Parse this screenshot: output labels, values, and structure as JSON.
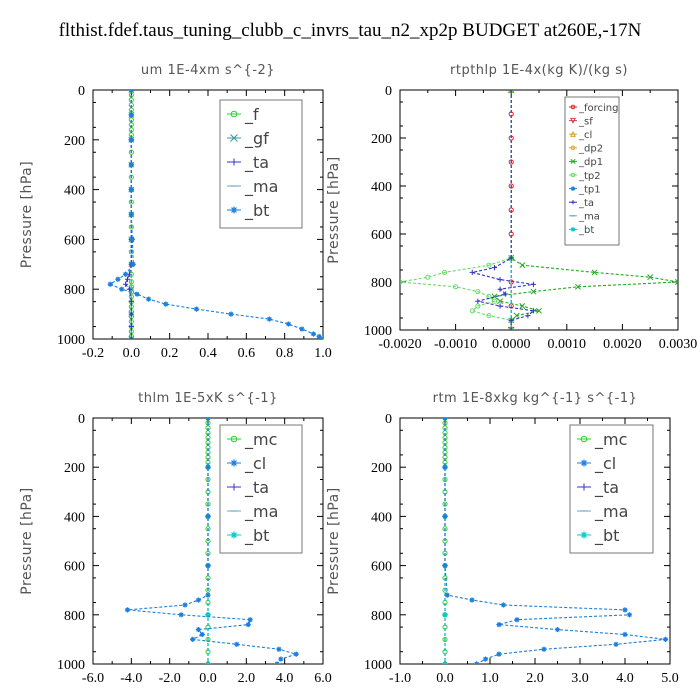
{
  "title": "flthist.fdef.taus_tuning_clubb_c_invrs_tau_n2_xp2p  BUDGET at260E,-17N",
  "chart_data": [
    {
      "type": "line",
      "title": "um   1E-4xm s^{-2}",
      "ylabel": "Pressure [hPa]",
      "xlim": [
        -0.2,
        1.0
      ],
      "ylim": [
        1000,
        0
      ],
      "xticks": [
        "-0.2",
        "0.0",
        "0.2",
        "0.4",
        "0.6",
        "0.8",
        "1.0"
      ],
      "yticks": [
        "0",
        "200",
        "400",
        "600",
        "800",
        "1000"
      ],
      "grid": false,
      "legend_placement": "top-right",
      "series": [
        {
          "name": "_f",
          "color": "#33cc33",
          "marker": "o",
          "y": [
            0,
            20,
            40,
            60,
            80,
            100,
            120,
            140,
            160,
            180,
            200,
            250,
            300,
            350,
            400,
            450,
            500,
            550,
            600,
            650,
            700,
            740,
            770,
            790,
            810,
            830,
            850,
            870,
            890,
            910,
            930,
            950,
            970,
            990,
            1000
          ],
          "x": [
            0,
            0,
            0,
            0,
            0,
            0,
            0,
            0,
            0,
            0,
            0,
            0,
            0,
            0,
            0,
            0,
            0,
            0,
            0,
            0,
            0,
            0,
            0,
            0,
            0,
            0,
            0,
            0,
            0,
            0,
            0,
            0,
            0,
            0,
            0
          ]
        },
        {
          "name": "_gf",
          "color": "#339999",
          "marker": "x",
          "y": [
            0,
            100,
            200,
            300,
            400,
            500,
            600,
            700,
            800,
            900,
            1000
          ],
          "x": [
            0,
            0,
            0,
            0,
            0,
            0,
            0,
            0,
            0,
            0,
            0
          ]
        },
        {
          "name": "_ta",
          "color": "#3333cc",
          "marker": "+",
          "y": [
            0,
            200,
            400,
            600,
            700,
            740,
            760,
            780,
            800,
            850,
            900,
            950,
            1000
          ],
          "x": [
            0,
            0,
            0,
            0,
            0,
            -0.01,
            -0.02,
            -0.03,
            -0.01,
            0,
            0,
            0,
            0
          ]
        },
        {
          "name": "_ma",
          "color": "#66aacc",
          "marker": "-",
          "y": [
            0,
            200,
            400,
            600,
            800,
            1000
          ],
          "x": [
            0,
            0,
            0,
            0,
            0,
            0
          ]
        },
        {
          "name": "_bt",
          "color": "#1a7fe0",
          "marker": "*",
          "y": [
            0,
            100,
            200,
            300,
            400,
            500,
            600,
            700,
            740,
            760,
            780,
            800,
            820,
            840,
            860,
            880,
            900,
            920,
            940,
            960,
            980,
            990,
            1000
          ],
          "x": [
            0,
            0,
            0,
            0,
            0,
            0,
            0.005,
            0.01,
            -0.03,
            -0.07,
            -0.11,
            -0.05,
            0.03,
            0.09,
            0.18,
            0.34,
            0.52,
            0.72,
            0.82,
            0.89,
            0.95,
            0.98,
            1.0
          ]
        }
      ]
    },
    {
      "type": "line",
      "title": "rtpthlp   1E-4x(kg K)/(kg s)",
      "ylabel": "Pressure [hPa]",
      "xlim": [
        -0.002,
        0.003
      ],
      "ylim": [
        1000,
        0
      ],
      "xticks": [
        "-0.0020",
        "-0.0010",
        "0.0000",
        "0.0010",
        "0.0020",
        "0.0030"
      ],
      "yticks": [
        "0",
        "200",
        "400",
        "600",
        "800",
        "1000"
      ],
      "grid": false,
      "legend_placement": "top-right",
      "series": [
        {
          "name": "_forcing",
          "color": "#e02020",
          "marker": "o",
          "y": [
            0,
            100,
            200,
            300,
            400,
            500,
            600,
            700,
            800,
            900,
            1000
          ],
          "x": [
            0,
            0,
            0,
            0,
            0,
            0,
            0,
            0,
            0,
            0,
            0
          ]
        },
        {
          "name": "_sf",
          "color": "#e04040",
          "marker": "v",
          "y": [
            0,
            1000
          ],
          "x": [
            0,
            0
          ]
        },
        {
          "name": "_cl",
          "color": "#e0a020",
          "marker": "^",
          "y": [
            0,
            1000
          ],
          "x": [
            0,
            0
          ]
        },
        {
          "name": "_dp2",
          "color": "#e0a020",
          "marker": "o",
          "y": [
            0,
            1000
          ],
          "x": [
            0,
            0
          ]
        },
        {
          "name": "_dp1",
          "color": "#22aa22",
          "marker": "x",
          "y": [
            0,
            700,
            730,
            760,
            780,
            800,
            820,
            840,
            860,
            880,
            900,
            920,
            940,
            960,
            1000
          ],
          "x": [
            0,
            0,
            0.0002,
            0.0015,
            0.0025,
            0.003,
            0.0012,
            0.0004,
            -0.0003,
            -0.0002,
            0.0002,
            0.0005,
            0.0001,
            0,
            0
          ]
        },
        {
          "name": "_tp2",
          "color": "#66dd66",
          "marker": "o",
          "y": [
            0,
            700,
            730,
            760,
            780,
            800,
            820,
            840,
            860,
            880,
            900,
            920,
            940,
            960,
            1000
          ],
          "x": [
            0,
            0,
            -0.0004,
            -0.0012,
            -0.0015,
            -0.002,
            -0.001,
            -0.0006,
            -0.0004,
            -0.0003,
            -0.0006,
            -0.0007,
            -0.0004,
            0,
            0
          ]
        },
        {
          "name": "_tp1",
          "color": "#1a7fe0",
          "marker": "*",
          "y": [
            0,
            1000
          ],
          "x": [
            0,
            0
          ]
        },
        {
          "name": "_ta",
          "color": "#3333cc",
          "marker": "+",
          "y": [
            0,
            700,
            740,
            760,
            790,
            810,
            830,
            850,
            880,
            900,
            920,
            940,
            960,
            1000
          ],
          "x": [
            0,
            0,
            -0.0003,
            -0.0007,
            -0.0002,
            0.0004,
            -0.0002,
            -0.0001,
            -0.0006,
            -0.0002,
            0.0004,
            0.0003,
            0,
            0
          ]
        },
        {
          "name": "_ma",
          "color": "#66aacc",
          "marker": "-",
          "y": [
            0,
            1000
          ],
          "x": [
            0,
            0
          ]
        },
        {
          "name": "_bt",
          "color": "#00cccc",
          "marker": "*",
          "y": [
            0,
            1000
          ],
          "x": [
            0,
            0
          ]
        }
      ]
    },
    {
      "type": "line",
      "title": "thlm   1E-5xK s^{-1}",
      "ylabel": "Pressure [hPa]",
      "xlim": [
        -6.0,
        6.0
      ],
      "ylim": [
        1000,
        0
      ],
      "xticks": [
        "-6.0",
        "-4.0",
        "-2.0",
        "0.0",
        "2.0",
        "4.0",
        "6.0"
      ],
      "yticks": [
        "0",
        "200",
        "400",
        "600",
        "800",
        "1000"
      ],
      "grid": false,
      "legend_placement": "top-right",
      "series": [
        {
          "name": "_mc",
          "color": "#33cc33",
          "marker": "o",
          "y": [
            0,
            20,
            40,
            60,
            80,
            100,
            120,
            140,
            160,
            180,
            200,
            250,
            300,
            350,
            400,
            450,
            500,
            550,
            600,
            650,
            700,
            750,
            800,
            850,
            900,
            950,
            1000
          ],
          "x": [
            0,
            0,
            0,
            0,
            0,
            0,
            0,
            0,
            0,
            0,
            0,
            0,
            0,
            0,
            0,
            0,
            0,
            0,
            0,
            0,
            0,
            0,
            0,
            0,
            0,
            0,
            0
          ]
        },
        {
          "name": "_cl",
          "color": "#1a7fe0",
          "marker": "*",
          "y": [
            0,
            200,
            400,
            600,
            720,
            740,
            760,
            780,
            800,
            820,
            840,
            860,
            880,
            900,
            920,
            940,
            960,
            980,
            1000
          ],
          "x": [
            0,
            0,
            0,
            0,
            0,
            -0.5,
            -1.2,
            -4.2,
            -1.4,
            2.2,
            2.1,
            -0.5,
            -0.3,
            -0.8,
            1.5,
            3.7,
            4.6,
            3.8,
            3.6
          ]
        },
        {
          "name": "_ta",
          "color": "#3333cc",
          "marker": "+",
          "y": [
            0,
            200,
            400,
            600,
            800,
            1000
          ],
          "x": [
            0,
            0,
            0,
            0,
            0,
            0
          ]
        },
        {
          "name": "_ma",
          "color": "#66aacc",
          "marker": "-",
          "y": [
            0,
            200,
            400,
            600,
            800,
            1000
          ],
          "x": [
            0,
            0,
            0,
            0,
            0,
            0
          ]
        },
        {
          "name": "_bt",
          "color": "#00cccc",
          "marker": "*",
          "y": [
            0,
            200,
            400,
            600,
            800,
            1000
          ],
          "x": [
            0,
            0,
            0,
            0,
            0,
            0
          ]
        }
      ]
    },
    {
      "type": "line",
      "title": "rtm   1E-8xkg kg^{-1} s^{-1}",
      "ylabel": "Pressure [hPa]",
      "xlim": [
        -1.0,
        5.0
      ],
      "ylim": [
        1000,
        0
      ],
      "xticks": [
        "-1.0",
        "0.0",
        "1.0",
        "2.0",
        "3.0",
        "4.0",
        "5.0"
      ],
      "yticks": [
        "0",
        "200",
        "400",
        "600",
        "800",
        "1000"
      ],
      "grid": false,
      "legend_placement": "top-right",
      "series": [
        {
          "name": "_mc",
          "color": "#33cc33",
          "marker": "o",
          "y": [
            0,
            20,
            40,
            60,
            80,
            100,
            120,
            140,
            160,
            180,
            200,
            250,
            300,
            350,
            400,
            450,
            500,
            550,
            600,
            650,
            700,
            750,
            800,
            850,
            900,
            950,
            1000
          ],
          "x": [
            0,
            0,
            0,
            0,
            0,
            0,
            0,
            0,
            0,
            0,
            0,
            0,
            0,
            0,
            0,
            0,
            0,
            0,
            0,
            0,
            0,
            0,
            0,
            0,
            0,
            0,
            0
          ]
        },
        {
          "name": "_cl",
          "color": "#1a7fe0",
          "marker": "*",
          "y": [
            0,
            200,
            400,
            600,
            720,
            740,
            760,
            780,
            800,
            820,
            840,
            860,
            880,
            900,
            920,
            940,
            960,
            980,
            1000
          ],
          "x": [
            0,
            0,
            0,
            0,
            0.05,
            0.6,
            1.3,
            4.0,
            4.1,
            1.6,
            1.2,
            2.5,
            4.0,
            4.9,
            3.8,
            2.2,
            1.2,
            0.9,
            0.7
          ]
        },
        {
          "name": "_ta",
          "color": "#3333cc",
          "marker": "+",
          "y": [
            0,
            200,
            400,
            600,
            800,
            1000
          ],
          "x": [
            0,
            0,
            0,
            0,
            0,
            0
          ]
        },
        {
          "name": "_ma",
          "color": "#66aacc",
          "marker": "-",
          "y": [
            0,
            200,
            400,
            600,
            800,
            1000
          ],
          "x": [
            0,
            0,
            0,
            0,
            0,
            0
          ]
        },
        {
          "name": "_bt",
          "color": "#00cccc",
          "marker": "*",
          "y": [
            0,
            200,
            400,
            600,
            800,
            1000
          ],
          "x": [
            0,
            0,
            0,
            0,
            0,
            0
          ]
        }
      ]
    }
  ]
}
